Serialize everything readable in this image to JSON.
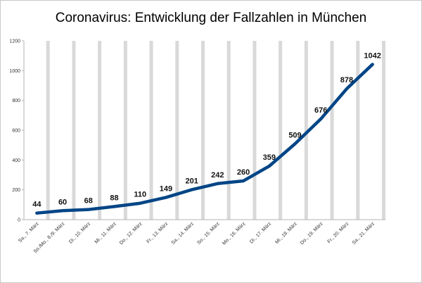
{
  "chart_data": {
    "type": "line",
    "title": "Coronavirus: Entwicklung der Fallzahlen in München",
    "xlabel": "",
    "ylabel": "",
    "ylim": [
      0,
      1200
    ],
    "yticks": [
      0,
      200,
      400,
      600,
      800,
      1000,
      1200
    ],
    "grid": "vertical bands",
    "legend": "none",
    "categories": [
      "Sa., 7. März",
      "So./Mo., 8./9. März",
      "Di., 10. März",
      "Mi., 11. März",
      "Do., 12. März",
      "Fr., 13. März",
      "Sa., 14. März",
      "So., 15. März",
      "Mo., 16. März",
      "Di., 17. März",
      "Mi., 18. März",
      "Do., 19. März",
      "Fr., 20. März",
      "Sa., 21. März"
    ],
    "series": [
      {
        "values": [
          44,
          60,
          68,
          88,
          110,
          149,
          201,
          242,
          260,
          359,
          509,
          676,
          878,
          1042
        ],
        "color": "#004586"
      }
    ]
  }
}
